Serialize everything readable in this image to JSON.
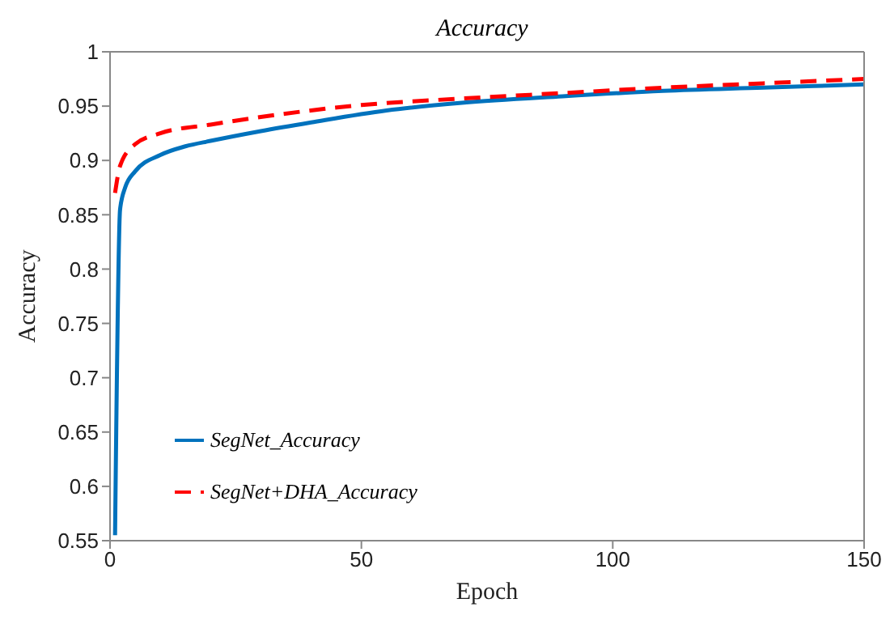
{
  "chart_data": {
    "type": "line",
    "title": "Accuracy",
    "xlabel": "Epoch",
    "ylabel": "Accuracy",
    "xlim": [
      0,
      150
    ],
    "xticks": [
      0,
      50,
      100,
      150
    ],
    "ylim": [
      0.55,
      1
    ],
    "yticks": [
      0.55,
      0.6,
      0.65,
      0.7,
      0.75,
      0.8,
      0.85,
      0.9,
      0.95,
      1
    ],
    "grid": false,
    "legend": "bottom left",
    "marker": "none",
    "series": [
      {
        "name": "SegNet_Accuracy",
        "color": "#0072bd",
        "line_style": "solid",
        "x": [
          1,
          2,
          3,
          5,
          10,
          15,
          20,
          30,
          40,
          55,
          70,
          90,
          110,
          130,
          150
        ],
        "values": [
          0.555,
          0.855,
          0.875,
          0.89,
          0.905,
          0.913,
          0.918,
          0.927,
          0.935,
          0.946,
          0.953,
          0.959,
          0.964,
          0.967,
          0.97
        ]
      },
      {
        "name": "SegNet+DHA_Accuracy",
        "color": "#ff0000",
        "line_style": "dashed",
        "x": [
          1,
          2,
          5,
          10,
          20,
          30,
          50,
          70,
          90,
          110,
          130,
          150
        ],
        "values": [
          0.87,
          0.895,
          0.915,
          0.925,
          0.933,
          0.94,
          0.951,
          0.957,
          0.962,
          0.967,
          0.971,
          0.975
        ]
      }
    ]
  }
}
